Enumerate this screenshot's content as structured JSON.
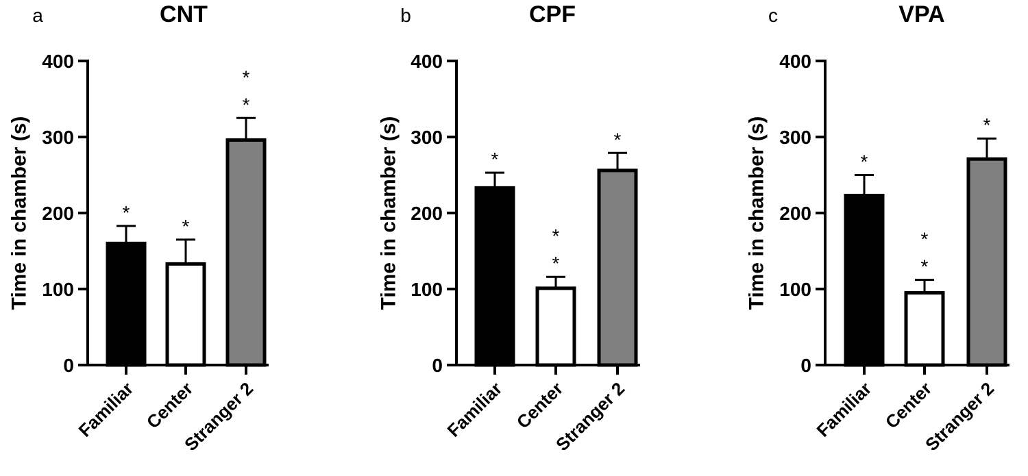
{
  "chart_data": [
    {
      "type": "bar",
      "panel": "a",
      "title": "CNT",
      "ylabel": "Time in chamber (s)",
      "ylim": [
        0,
        400
      ],
      "yticks": [
        "0",
        "100",
        "200",
        "300",
        "400"
      ],
      "categories": [
        "Familiar",
        "Center",
        "Stranger 2"
      ],
      "values": [
        160,
        133,
        296
      ],
      "errors": [
        23,
        32,
        29
      ],
      "colors": [
        "#000000",
        "#ffffff",
        "#808080"
      ],
      "significance": [
        "*",
        "*",
        "* *"
      ]
    },
    {
      "type": "bar",
      "panel": "b",
      "title": "CPF",
      "ylabel": "Time in chamber (s)",
      "ylim": [
        0,
        400
      ],
      "yticks": [
        "0",
        "100",
        "200",
        "300",
        "400"
      ],
      "categories": [
        "Familiar",
        "Center",
        "Stranger 2"
      ],
      "values": [
        233,
        101,
        256
      ],
      "errors": [
        20,
        15,
        23
      ],
      "colors": [
        "#000000",
        "#ffffff",
        "#808080"
      ],
      "significance": [
        "*",
        "* *",
        "*"
      ]
    },
    {
      "type": "bar",
      "panel": "c",
      "title": "VPA",
      "ylabel": "Time in chamber (s)",
      "ylim": [
        0,
        400
      ],
      "yticks": [
        "0",
        "100",
        "200",
        "300",
        "400"
      ],
      "categories": [
        "Familiar",
        "Center",
        "Stranger 2"
      ],
      "values": [
        223,
        95,
        271
      ],
      "errors": [
        27,
        17,
        27
      ],
      "colors": [
        "#000000",
        "#ffffff",
        "#808080"
      ],
      "significance": [
        "*",
        "* *",
        "*"
      ]
    }
  ]
}
